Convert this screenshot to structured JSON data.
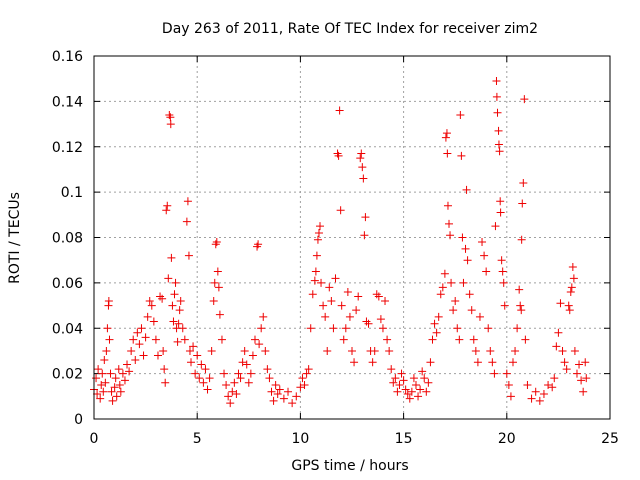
{
  "chart_data": {
    "type": "scatter",
    "title": "Day 263 of 2011, Rate Of TEC Index for receiver zim2",
    "xlabel": "GPS time / hours",
    "ylabel": "ROTI / TECUs",
    "xlim": [
      0,
      25
    ],
    "ylim": [
      0,
      0.16
    ],
    "xticks": [
      "0",
      "5",
      "10",
      "15",
      "20",
      "25"
    ],
    "yticks": [
      "0",
      "0.02",
      "0.04",
      "0.06",
      "0.08",
      "0.1",
      "0.12",
      "0.14",
      "0.16"
    ],
    "xtick_values": [
      0,
      5,
      10,
      15,
      20,
      25
    ],
    "ytick_values": [
      0,
      0.02,
      0.04,
      0.06,
      0.08,
      0.1,
      0.12,
      0.14,
      0.16
    ],
    "grid": true,
    "marker": "+",
    "color": "#ee0000",
    "series": [
      {
        "name": "ROTI",
        "points": [
          [
            0.0,
            0.013
          ],
          [
            0.1,
            0.018
          ],
          [
            0.15,
            0.011
          ],
          [
            0.2,
            0.022
          ],
          [
            0.3,
            0.009
          ],
          [
            0.35,
            0.015
          ],
          [
            0.4,
            0.02
          ],
          [
            0.45,
            0.012
          ],
          [
            0.5,
            0.026
          ],
          [
            0.55,
            0.016
          ],
          [
            0.6,
            0.03
          ],
          [
            0.65,
            0.04
          ],
          [
            0.7,
            0.05
          ],
          [
            0.72,
            0.052
          ],
          [
            0.75,
            0.035
          ],
          [
            0.8,
            0.02
          ],
          [
            0.85,
            0.012
          ],
          [
            0.9,
            0.008
          ],
          [
            1.0,
            0.014
          ],
          [
            1.05,
            0.018
          ],
          [
            1.1,
            0.01
          ],
          [
            1.2,
            0.022
          ],
          [
            1.25,
            0.015
          ],
          [
            1.3,
            0.012
          ],
          [
            1.4,
            0.02
          ],
          [
            1.5,
            0.017
          ],
          [
            1.6,
            0.024
          ],
          [
            1.7,
            0.021
          ],
          [
            1.8,
            0.03
          ],
          [
            1.9,
            0.035
          ],
          [
            2.0,
            0.026
          ],
          [
            2.1,
            0.038
          ],
          [
            2.2,
            0.033
          ],
          [
            2.3,
            0.04
          ],
          [
            2.4,
            0.028
          ],
          [
            2.5,
            0.036
          ],
          [
            2.6,
            0.045
          ],
          [
            2.7,
            0.052
          ],
          [
            2.8,
            0.05
          ],
          [
            2.9,
            0.043
          ],
          [
            3.0,
            0.035
          ],
          [
            3.1,
            0.028
          ],
          [
            3.2,
            0.054
          ],
          [
            3.3,
            0.053
          ],
          [
            3.35,
            0.03
          ],
          [
            3.4,
            0.022
          ],
          [
            3.45,
            0.016
          ],
          [
            3.5,
            0.092
          ],
          [
            3.55,
            0.094
          ],
          [
            3.6,
            0.062
          ],
          [
            3.65,
            0.134
          ],
          [
            3.7,
            0.133
          ],
          [
            3.72,
            0.13
          ],
          [
            3.75,
            0.071
          ],
          [
            3.8,
            0.05
          ],
          [
            3.85,
            0.043
          ],
          [
            3.9,
            0.055
          ],
          [
            3.95,
            0.06
          ],
          [
            4.0,
            0.04
          ],
          [
            4.05,
            0.034
          ],
          [
            4.1,
            0.042
          ],
          [
            4.15,
            0.048
          ],
          [
            4.2,
            0.052
          ],
          [
            4.3,
            0.04
          ],
          [
            4.4,
            0.035
          ],
          [
            4.5,
            0.087
          ],
          [
            4.55,
            0.096
          ],
          [
            4.6,
            0.072
          ],
          [
            4.65,
            0.03
          ],
          [
            4.7,
            0.025
          ],
          [
            4.8,
            0.032
          ],
          [
            4.9,
            0.02
          ],
          [
            5.0,
            0.028
          ],
          [
            5.1,
            0.018
          ],
          [
            5.2,
            0.024
          ],
          [
            5.3,
            0.016
          ],
          [
            5.4,
            0.022
          ],
          [
            5.5,
            0.013
          ],
          [
            5.6,
            0.018
          ],
          [
            5.7,
            0.03
          ],
          [
            5.8,
            0.052
          ],
          [
            5.85,
            0.06
          ],
          [
            5.9,
            0.077
          ],
          [
            5.95,
            0.078
          ],
          [
            6.0,
            0.065
          ],
          [
            6.05,
            0.058
          ],
          [
            6.1,
            0.046
          ],
          [
            6.2,
            0.035
          ],
          [
            6.3,
            0.02
          ],
          [
            6.4,
            0.015
          ],
          [
            6.5,
            0.01
          ],
          [
            6.6,
            0.007
          ],
          [
            6.7,
            0.012
          ],
          [
            6.8,
            0.016
          ],
          [
            6.9,
            0.011
          ],
          [
            7.0,
            0.02
          ],
          [
            7.1,
            0.018
          ],
          [
            7.2,
            0.025
          ],
          [
            7.3,
            0.03
          ],
          [
            7.4,
            0.024
          ],
          [
            7.5,
            0.016
          ],
          [
            7.6,
            0.02
          ],
          [
            7.7,
            0.028
          ],
          [
            7.8,
            0.035
          ],
          [
            7.9,
            0.076
          ],
          [
            7.95,
            0.077
          ],
          [
            8.0,
            0.033
          ],
          [
            8.1,
            0.04
          ],
          [
            8.2,
            0.045
          ],
          [
            8.3,
            0.03
          ],
          [
            8.4,
            0.022
          ],
          [
            8.5,
            0.018
          ],
          [
            8.6,
            0.012
          ],
          [
            8.7,
            0.008
          ],
          [
            8.8,
            0.015
          ],
          [
            8.9,
            0.011
          ],
          [
            9.0,
            0.013
          ],
          [
            9.2,
            0.009
          ],
          [
            9.4,
            0.012
          ],
          [
            9.6,
            0.007
          ],
          [
            9.8,
            0.01
          ],
          [
            10.0,
            0.014
          ],
          [
            10.1,
            0.018
          ],
          [
            10.2,
            0.015
          ],
          [
            10.3,
            0.02
          ],
          [
            10.4,
            0.022
          ],
          [
            10.5,
            0.04
          ],
          [
            10.6,
            0.055
          ],
          [
            10.7,
            0.061
          ],
          [
            10.75,
            0.065
          ],
          [
            10.8,
            0.072
          ],
          [
            10.85,
            0.079
          ],
          [
            10.9,
            0.082
          ],
          [
            10.95,
            0.085
          ],
          [
            11.0,
            0.06
          ],
          [
            11.1,
            0.05
          ],
          [
            11.2,
            0.045
          ],
          [
            11.3,
            0.03
          ],
          [
            11.4,
            0.058
          ],
          [
            11.5,
            0.052
          ],
          [
            11.6,
            0.04
          ],
          [
            11.7,
            0.062
          ],
          [
            11.8,
            0.117
          ],
          [
            11.85,
            0.116
          ],
          [
            11.9,
            0.136
          ],
          [
            11.95,
            0.092
          ],
          [
            12.0,
            0.05
          ],
          [
            12.1,
            0.035
          ],
          [
            12.2,
            0.04
          ],
          [
            12.3,
            0.056
          ],
          [
            12.4,
            0.045
          ],
          [
            12.5,
            0.03
          ],
          [
            12.6,
            0.025
          ],
          [
            12.7,
            0.048
          ],
          [
            12.8,
            0.054
          ],
          [
            12.9,
            0.115
          ],
          [
            12.95,
            0.117
          ],
          [
            13.0,
            0.111
          ],
          [
            13.05,
            0.106
          ],
          [
            13.1,
            0.081
          ],
          [
            13.15,
            0.089
          ],
          [
            13.2,
            0.043
          ],
          [
            13.3,
            0.042
          ],
          [
            13.4,
            0.03
          ],
          [
            13.5,
            0.025
          ],
          [
            13.6,
            0.03
          ],
          [
            13.7,
            0.055
          ],
          [
            13.8,
            0.054
          ],
          [
            13.9,
            0.044
          ],
          [
            14.0,
            0.04
          ],
          [
            14.1,
            0.052
          ],
          [
            14.2,
            0.035
          ],
          [
            14.3,
            0.03
          ],
          [
            14.4,
            0.022
          ],
          [
            14.5,
            0.016
          ],
          [
            14.6,
            0.018
          ],
          [
            14.7,
            0.012
          ],
          [
            14.8,
            0.015
          ],
          [
            14.9,
            0.02
          ],
          [
            15.0,
            0.017
          ],
          [
            15.1,
            0.013
          ],
          [
            15.2,
            0.011
          ],
          [
            15.3,
            0.009
          ],
          [
            15.4,
            0.012
          ],
          [
            15.5,
            0.018
          ],
          [
            15.6,
            0.015
          ],
          [
            15.7,
            0.01
          ],
          [
            15.8,
            0.013
          ],
          [
            15.9,
            0.021
          ],
          [
            16.0,
            0.018
          ],
          [
            16.1,
            0.012
          ],
          [
            16.2,
            0.016
          ],
          [
            16.3,
            0.025
          ],
          [
            16.4,
            0.035
          ],
          [
            16.5,
            0.042
          ],
          [
            16.6,
            0.038
          ],
          [
            16.7,
            0.045
          ],
          [
            16.8,
            0.055
          ],
          [
            16.9,
            0.058
          ],
          [
            17.0,
            0.064
          ],
          [
            17.05,
            0.124
          ],
          [
            17.1,
            0.126
          ],
          [
            17.12,
            0.117
          ],
          [
            17.15,
            0.094
          ],
          [
            17.2,
            0.086
          ],
          [
            17.25,
            0.081
          ],
          [
            17.3,
            0.06
          ],
          [
            17.4,
            0.048
          ],
          [
            17.5,
            0.052
          ],
          [
            17.6,
            0.04
          ],
          [
            17.7,
            0.035
          ],
          [
            17.75,
            0.134
          ],
          [
            17.8,
            0.116
          ],
          [
            17.85,
            0.08
          ],
          [
            17.9,
            0.06
          ],
          [
            18.0,
            0.075
          ],
          [
            18.05,
            0.101
          ],
          [
            18.1,
            0.07
          ],
          [
            18.2,
            0.055
          ],
          [
            18.3,
            0.048
          ],
          [
            18.4,
            0.035
          ],
          [
            18.5,
            0.03
          ],
          [
            18.6,
            0.025
          ],
          [
            18.7,
            0.045
          ],
          [
            18.8,
            0.078
          ],
          [
            18.9,
            0.072
          ],
          [
            19.0,
            0.065
          ],
          [
            19.1,
            0.04
          ],
          [
            19.2,
            0.03
          ],
          [
            19.3,
            0.025
          ],
          [
            19.4,
            0.02
          ],
          [
            19.45,
            0.085
          ],
          [
            19.5,
            0.149
          ],
          [
            19.52,
            0.142
          ],
          [
            19.55,
            0.135
          ],
          [
            19.6,
            0.127
          ],
          [
            19.62,
            0.121
          ],
          [
            19.65,
            0.118
          ],
          [
            19.68,
            0.096
          ],
          [
            19.7,
            0.091
          ],
          [
            19.75,
            0.07
          ],
          [
            19.8,
            0.065
          ],
          [
            19.85,
            0.06
          ],
          [
            19.9,
            0.05
          ],
          [
            20.0,
            0.02
          ],
          [
            20.1,
            0.015
          ],
          [
            20.2,
            0.01
          ],
          [
            20.3,
            0.025
          ],
          [
            20.4,
            0.03
          ],
          [
            20.5,
            0.04
          ],
          [
            20.6,
            0.057
          ],
          [
            20.65,
            0.05
          ],
          [
            20.7,
            0.048
          ],
          [
            20.72,
            0.079
          ],
          [
            20.75,
            0.095
          ],
          [
            20.8,
            0.104
          ],
          [
            20.85,
            0.141
          ],
          [
            20.9,
            0.035
          ],
          [
            21.0,
            0.015
          ],
          [
            21.2,
            0.009
          ],
          [
            21.4,
            0.012
          ],
          [
            21.6,
            0.008
          ],
          [
            21.8,
            0.011
          ],
          [
            22.0,
            0.015
          ],
          [
            22.2,
            0.014
          ],
          [
            22.3,
            0.018
          ],
          [
            22.4,
            0.032
          ],
          [
            22.5,
            0.038
          ],
          [
            22.6,
            0.051
          ],
          [
            22.7,
            0.03
          ],
          [
            22.8,
            0.025
          ],
          [
            22.9,
            0.022
          ],
          [
            23.0,
            0.05
          ],
          [
            23.05,
            0.048
          ],
          [
            23.1,
            0.056
          ],
          [
            23.15,
            0.058
          ],
          [
            23.2,
            0.067
          ],
          [
            23.25,
            0.062
          ],
          [
            23.3,
            0.03
          ],
          [
            23.4,
            0.02
          ],
          [
            23.5,
            0.024
          ],
          [
            23.6,
            0.017
          ],
          [
            23.7,
            0.012
          ],
          [
            23.8,
            0.025
          ],
          [
            23.85,
            0.018
          ]
        ]
      }
    ]
  }
}
